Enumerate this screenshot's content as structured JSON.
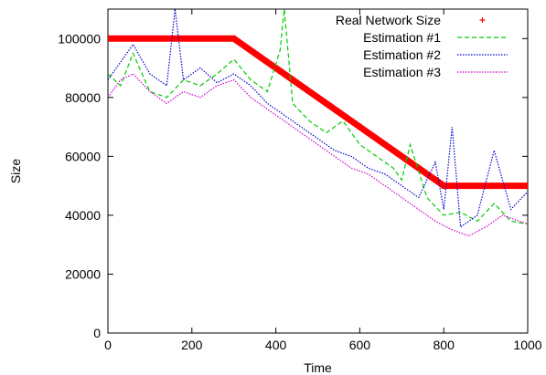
{
  "chart_data": {
    "type": "line",
    "title": "",
    "xlabel": "Time",
    "ylabel": "Size",
    "xlim": [
      0,
      1000
    ],
    "ylim": [
      0,
      110000
    ],
    "xticks": [
      0,
      200,
      400,
      600,
      800,
      1000
    ],
    "yticks": [
      0,
      20000,
      40000,
      60000,
      80000,
      100000
    ],
    "xtick_labels": [
      "0",
      "200",
      "400",
      "600",
      "800",
      "1000"
    ],
    "ytick_labels": [
      "0",
      "20000",
      "40000",
      "60000",
      "80000",
      "100000"
    ],
    "grid": false,
    "legend_position": "top-right",
    "series": [
      {
        "name": "Real Network Size",
        "style": "points",
        "color": "#ff0000",
        "x": [
          0,
          300,
          800,
          1000
        ],
        "y": [
          100000,
          100000,
          50000,
          50000
        ]
      },
      {
        "name": "Estimation #1",
        "style": "dashed",
        "color": "#00cc00",
        "x": [
          0,
          30,
          60,
          100,
          140,
          180,
          220,
          260,
          300,
          340,
          380,
          410,
          420,
          440,
          480,
          520,
          560,
          600,
          640,
          680,
          700,
          720,
          760,
          800,
          840,
          880,
          920,
          960,
          1000
        ],
        "y": [
          88000,
          84000,
          95000,
          82000,
          80000,
          86000,
          84000,
          88000,
          93000,
          86000,
          82000,
          96000,
          110000,
          78000,
          72000,
          68000,
          72000,
          64000,
          60000,
          56000,
          52000,
          64000,
          46000,
          40000,
          41000,
          38000,
          44000,
          38000,
          37000
        ]
      },
      {
        "name": "Estimation #2",
        "style": "dotted",
        "color": "#0000cc",
        "x": [
          0,
          30,
          60,
          100,
          140,
          160,
          180,
          220,
          260,
          300,
          340,
          380,
          420,
          460,
          500,
          540,
          580,
          620,
          660,
          700,
          740,
          780,
          800,
          820,
          840,
          880,
          920,
          960,
          1000
        ],
        "y": [
          86000,
          92000,
          98000,
          88000,
          84000,
          110000,
          86000,
          90000,
          85000,
          88000,
          84000,
          78000,
          74000,
          70000,
          66000,
          62000,
          60000,
          56000,
          54000,
          50000,
          46000,
          58000,
          42000,
          70000,
          36000,
          40000,
          62000,
          42000,
          48000
        ]
      },
      {
        "name": "Estimation #3",
        "style": "dotted",
        "color": "#cc00cc",
        "x": [
          0,
          30,
          60,
          100,
          140,
          180,
          220,
          260,
          300,
          340,
          380,
          420,
          460,
          500,
          540,
          580,
          620,
          660,
          700,
          740,
          780,
          820,
          860,
          900,
          940,
          980,
          1000
        ],
        "y": [
          80000,
          86000,
          88000,
          82000,
          78000,
          82000,
          80000,
          84000,
          86000,
          80000,
          76000,
          72000,
          68000,
          64000,
          60000,
          56000,
          54000,
          50000,
          46000,
          42000,
          38000,
          35000,
          33000,
          36000,
          40000,
          38000,
          37000
        ]
      }
    ]
  }
}
